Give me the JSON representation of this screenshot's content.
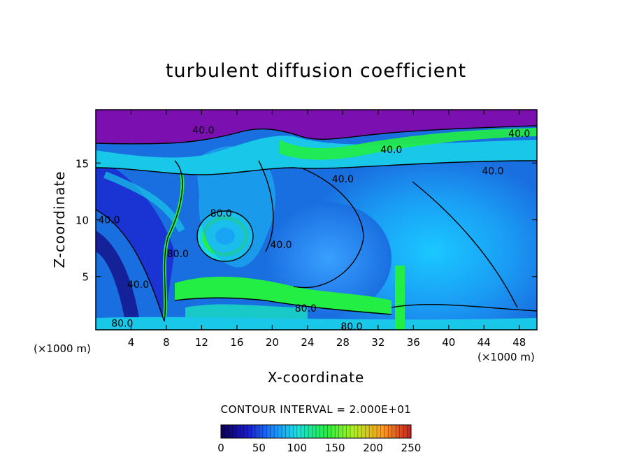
{
  "chart_data": {
    "type": "heatmap",
    "title": "turbulent diffusion coefficient",
    "xlabel": "X-coordinate",
    "ylabel": "Z-coordinate",
    "x_unit": "(×1000 m)",
    "z_unit": "(×1000 m)",
    "x_ticks": [
      4,
      8,
      12,
      16,
      20,
      24,
      28,
      32,
      36,
      40,
      44,
      48
    ],
    "z_ticks": [
      5,
      10,
      15
    ],
    "xlim": [
      0,
      50
    ],
    "zlim": [
      0.3,
      19.7
    ],
    "contour_labels": [
      {
        "value": "40.0",
        "x": 12.2,
        "z": 17.9
      },
      {
        "value": "40.0",
        "x": 48.0,
        "z": 17.6
      },
      {
        "value": "40.0",
        "x": 33.5,
        "z": 16.2
      },
      {
        "value": "40.0",
        "x": 45.0,
        "z": 14.3
      },
      {
        "value": "40.0",
        "x": 28.0,
        "z": 13.6
      },
      {
        "value": "80.0",
        "x": 14.2,
        "z": 10.6
      },
      {
        "value": "40.0",
        "x": 1.5,
        "z": 10.0
      },
      {
        "value": "40.0",
        "x": 21.0,
        "z": 7.8
      },
      {
        "value": "80.0",
        "x": 9.3,
        "z": 7.0
      },
      {
        "value": "40.0",
        "x": 4.8,
        "z": 4.3
      },
      {
        "value": "80.0",
        "x": 23.8,
        "z": 2.2
      },
      {
        "value": "80.0",
        "x": 3.0,
        "z": 0.9
      },
      {
        "value": "80.0",
        "x": 29.0,
        "z": 0.6
      }
    ],
    "contour_interval": "CONTOUR INTERVAL = 2.000E+01",
    "colorbar": {
      "range": [
        0,
        250
      ],
      "ticks": [
        0,
        50,
        100,
        150,
        200,
        250
      ],
      "colors": [
        "#0a0050",
        "#1a1ad0",
        "#1a8cff",
        "#19e0e0",
        "#22ee44",
        "#b0f020",
        "#ff9a20",
        "#c81e1e"
      ]
    },
    "field_colors": {
      "upper_layer": "#7a10b0",
      "domain_base": "#1a7ae0",
      "high_values": "#22ee44"
    }
  }
}
